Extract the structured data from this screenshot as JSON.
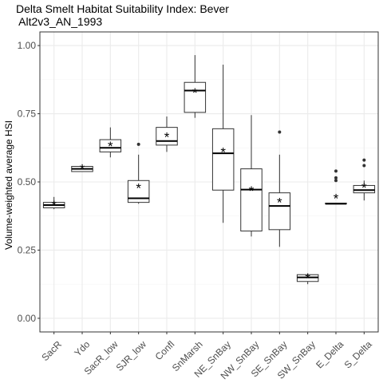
{
  "chart_data": {
    "type": "boxplot",
    "title_lines": [
      "Delta Smelt Habitat Suitability Index: Bever",
      " Alt2v3_AN_1993"
    ],
    "xlabel": "",
    "ylabel": "Volume-weighted average HSI",
    "ylim": [
      -0.05,
      1.05
    ],
    "yticks": [
      0.0,
      0.25,
      0.5,
      0.75,
      1.0
    ],
    "ytick_labels": [
      "0.00",
      "0.25",
      "0.50",
      "0.75",
      "1.00"
    ],
    "grid": true,
    "categories": [
      "SacR",
      "Ydo",
      "SacR_low",
      "SJR_low",
      "Confl",
      "SnMarsh",
      "NE_SnBay",
      "NW_SnBay",
      "SE_SnBay",
      "SW_SnBay",
      "E_Delta",
      "S_Delta"
    ],
    "boxes": [
      {
        "q1": 0.405,
        "median": 0.415,
        "q3": 0.425,
        "whisker_low": 0.4,
        "whisker_high": 0.445,
        "mean": 0.415,
        "outliers": []
      },
      {
        "q1": 0.538,
        "median": 0.548,
        "q3": 0.557,
        "whisker_low": 0.538,
        "whisker_high": 0.565,
        "mean": 0.548,
        "outliers": []
      },
      {
        "q1": 0.61,
        "median": 0.625,
        "q3": 0.655,
        "whisker_low": 0.59,
        "whisker_high": 0.7,
        "mean": 0.632,
        "outliers": []
      },
      {
        "q1": 0.425,
        "median": 0.44,
        "q3": 0.505,
        "whisker_low": 0.42,
        "whisker_high": 0.6,
        "mean": 0.478,
        "outliers": [
          0.638
        ]
      },
      {
        "q1": 0.635,
        "median": 0.65,
        "q3": 0.7,
        "whisker_low": 0.61,
        "whisker_high": 0.74,
        "mean": 0.665,
        "outliers": []
      },
      {
        "q1": 0.755,
        "median": 0.835,
        "q3": 0.865,
        "whisker_low": 0.735,
        "whisker_high": 0.965,
        "mean": 0.828,
        "outliers": []
      },
      {
        "q1": 0.47,
        "median": 0.605,
        "q3": 0.695,
        "whisker_low": 0.35,
        "whisker_high": 0.93,
        "mean": 0.61,
        "outliers": []
      },
      {
        "q1": 0.32,
        "median": 0.472,
        "q3": 0.548,
        "whisker_low": 0.3,
        "whisker_high": 0.745,
        "mean": 0.468,
        "outliers": []
      },
      {
        "q1": 0.325,
        "median": 0.412,
        "q3": 0.46,
        "whisker_low": 0.262,
        "whisker_high": 0.6,
        "mean": 0.425,
        "outliers": [
          0.683
        ]
      },
      {
        "q1": 0.135,
        "median": 0.15,
        "q3": 0.16,
        "whisker_low": 0.125,
        "whisker_high": 0.165,
        "mean": 0.148,
        "outliers": []
      },
      {
        "q1": 0.42,
        "median": 0.42,
        "q3": 0.422,
        "whisker_low": 0.42,
        "whisker_high": 0.422,
        "mean": 0.44,
        "outliers": [
          0.505,
          0.515,
          0.54
        ]
      },
      {
        "q1": 0.46,
        "median": 0.47,
        "q3": 0.487,
        "whisker_low": 0.432,
        "whisker_high": 0.505,
        "mean": 0.48,
        "outliers": [
          0.56,
          0.58
        ]
      }
    ],
    "colors": {
      "box_fill": "#ffffff",
      "box_stroke": "#333333",
      "panel_border": "#333333",
      "grid_major": "#ebebeb",
      "grid_minor": "#f5f5f5",
      "tick_label": "#4d4d4d"
    }
  }
}
